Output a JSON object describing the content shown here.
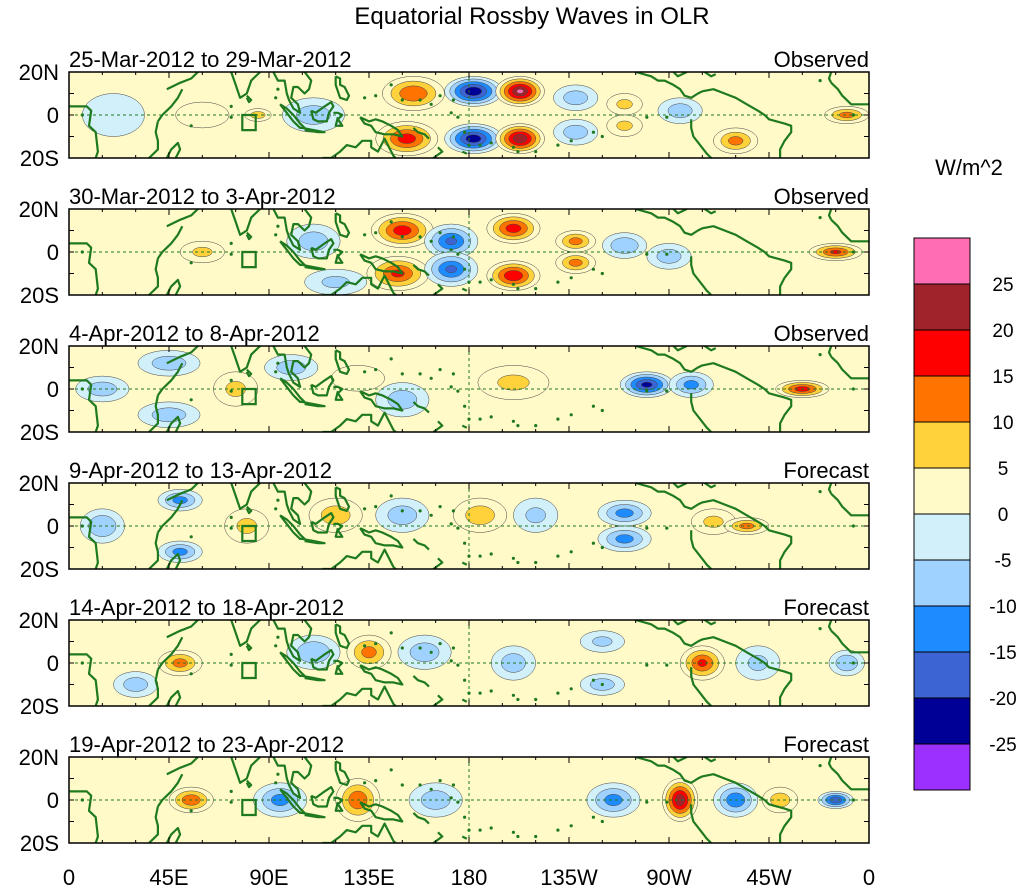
{
  "title": "Equatorial Rossby Waves in OLR",
  "units": "W/m^2",
  "lat_labels": [
    "20N",
    "0",
    "20S"
  ],
  "lon_labels": [
    "0",
    "45E",
    "90E",
    "135E",
    "180",
    "135W",
    "90W",
    "45W",
    "0"
  ],
  "colorbar": {
    "colors": [
      "#ff6eb4",
      "#a0222a",
      "#ff0000",
      "#ff7300",
      "#ffd23c",
      "#fffac8",
      "#d2f0fa",
      "#a0d2ff",
      "#1e8cff",
      "#3c64d2",
      "#000096",
      "#9b30ff"
    ],
    "labels": [
      "25",
      "20",
      "15",
      "10",
      "5",
      "0",
      "-5",
      "-10",
      "-15",
      "-20",
      "-25"
    ]
  },
  "panels": [
    {
      "date_range": "25-Mar-2012 to 29-Mar-2012",
      "status": "Observed",
      "centers": [
        {
          "lon": 155,
          "lat": 10,
          "v": 15,
          "w": 14,
          "h": 8
        },
        {
          "lon": 152,
          "lat": -11,
          "v": 18,
          "w": 14,
          "h": 8
        },
        {
          "lon": 182,
          "lat": 11,
          "v": -25,
          "w": 13,
          "h": 7
        },
        {
          "lon": 182,
          "lat": -11,
          "v": -24,
          "w": 13,
          "h": 7
        },
        {
          "lon": 203,
          "lat": 11,
          "v": 26,
          "w": 11,
          "h": 7
        },
        {
          "lon": 203,
          "lat": -11,
          "v": 25,
          "w": 11,
          "h": 7
        },
        {
          "lon": 228,
          "lat": 8,
          "v": -8,
          "w": 10,
          "h": 6
        },
        {
          "lon": 228,
          "lat": -8,
          "v": -8,
          "w": 10,
          "h": 6
        },
        {
          "lon": 250,
          "lat": 5,
          "v": 6,
          "w": 8,
          "h": 5
        },
        {
          "lon": 250,
          "lat": -5,
          "v": 6,
          "w": 8,
          "h": 5
        },
        {
          "lon": 275,
          "lat": 2,
          "v": -8,
          "w": 10,
          "h": 6
        },
        {
          "lon": 300,
          "lat": -12,
          "v": 12,
          "w": 10,
          "h": 6
        },
        {
          "lon": 350,
          "lat": 0,
          "v": 12,
          "w": 10,
          "h": 4
        },
        {
          "lon": 110,
          "lat": 0,
          "v": -8,
          "w": 14,
          "h": 8
        },
        {
          "lon": 60,
          "lat": 0,
          "v": 5,
          "w": 12,
          "h": 6
        },
        {
          "lon": 20,
          "lat": 0,
          "v": -5,
          "w": 14,
          "h": 10
        },
        {
          "lon": 85,
          "lat": 0,
          "v": 8,
          "w": 6,
          "h": 3
        }
      ]
    },
    {
      "date_range": "30-Mar-2012 to 3-Apr-2012",
      "status": "Observed",
      "centers": [
        {
          "lon": 150,
          "lat": 10,
          "v": 18,
          "w": 14,
          "h": 8
        },
        {
          "lon": 148,
          "lat": -10,
          "v": 16,
          "w": 14,
          "h": 8
        },
        {
          "lon": 172,
          "lat": 5,
          "v": -16,
          "w": 12,
          "h": 8
        },
        {
          "lon": 172,
          "lat": -8,
          "v": -16,
          "w": 12,
          "h": 8
        },
        {
          "lon": 200,
          "lat": 11,
          "v": 18,
          "w": 12,
          "h": 7
        },
        {
          "lon": 200,
          "lat": -11,
          "v": 20,
          "w": 12,
          "h": 7
        },
        {
          "lon": 228,
          "lat": 5,
          "v": 12,
          "w": 9,
          "h": 5
        },
        {
          "lon": 228,
          "lat": -5,
          "v": 12,
          "w": 9,
          "h": 5
        },
        {
          "lon": 250,
          "lat": 3,
          "v": -10,
          "w": 10,
          "h": 6
        },
        {
          "lon": 270,
          "lat": -2,
          "v": -8,
          "w": 10,
          "h": 6
        },
        {
          "lon": 345,
          "lat": 0,
          "v": 16,
          "w": 12,
          "h": 4
        },
        {
          "lon": 110,
          "lat": 5,
          "v": -8,
          "w": 12,
          "h": 8
        },
        {
          "lon": 60,
          "lat": 0,
          "v": 6,
          "w": 10,
          "h": 5
        },
        {
          "lon": 120,
          "lat": -14,
          "v": -6,
          "w": 14,
          "h": 6
        }
      ]
    },
    {
      "date_range": "4-Apr-2012 to 8-Apr-2012",
      "status": "Observed",
      "centers": [
        {
          "lon": 45,
          "lat": 12,
          "v": -8,
          "w": 14,
          "h": 6
        },
        {
          "lon": 45,
          "lat": -12,
          "v": -8,
          "w": 14,
          "h": 6
        },
        {
          "lon": 75,
          "lat": 0,
          "v": 6,
          "w": 10,
          "h": 8
        },
        {
          "lon": 100,
          "lat": 10,
          "v": -8,
          "w": 12,
          "h": 6
        },
        {
          "lon": 130,
          "lat": 5,
          "v": 5,
          "w": 12,
          "h": 6
        },
        {
          "lon": 150,
          "lat": -5,
          "v": -8,
          "w": 12,
          "h": 8
        },
        {
          "lon": 200,
          "lat": 3,
          "v": 6,
          "w": 16,
          "h": 8
        },
        {
          "lon": 260,
          "lat": 2,
          "v": -22,
          "w": 12,
          "h": 6
        },
        {
          "lon": 280,
          "lat": 2,
          "v": -12,
          "w": 10,
          "h": 6
        },
        {
          "lon": 330,
          "lat": 0,
          "v": 18,
          "w": 12,
          "h": 4
        },
        {
          "lon": 15,
          "lat": 0,
          "v": -8,
          "w": 12,
          "h": 6
        }
      ]
    },
    {
      "date_range": "9-Apr-2012 to 13-Apr-2012",
      "status": "Forecast",
      "centers": [
        {
          "lon": 50,
          "lat": 12,
          "v": -12,
          "w": 10,
          "h": 5
        },
        {
          "lon": 50,
          "lat": -12,
          "v": -12,
          "w": 10,
          "h": 5
        },
        {
          "lon": 80,
          "lat": 0,
          "v": 6,
          "w": 10,
          "h": 8
        },
        {
          "lon": 120,
          "lat": 5,
          "v": 8,
          "w": 12,
          "h": 8
        },
        {
          "lon": 150,
          "lat": 5,
          "v": -8,
          "w": 12,
          "h": 8
        },
        {
          "lon": 185,
          "lat": 5,
          "v": 8,
          "w": 12,
          "h": 8
        },
        {
          "lon": 210,
          "lat": 5,
          "v": -6,
          "w": 10,
          "h": 8
        },
        {
          "lon": 250,
          "lat": 6,
          "v": -12,
          "w": 12,
          "h": 6
        },
        {
          "lon": 250,
          "lat": -6,
          "v": -12,
          "w": 12,
          "h": 6
        },
        {
          "lon": 290,
          "lat": 2,
          "v": 6,
          "w": 10,
          "h": 6
        },
        {
          "lon": 305,
          "lat": 0,
          "v": 12,
          "w": 10,
          "h": 4
        },
        {
          "lon": 15,
          "lat": 0,
          "v": -10,
          "w": 10,
          "h": 8
        }
      ]
    },
    {
      "date_range": "14-Apr-2012 to 18-Apr-2012",
      "status": "Forecast",
      "centers": [
        {
          "lon": 50,
          "lat": 0,
          "v": 12,
          "w": 10,
          "h": 6
        },
        {
          "lon": 30,
          "lat": -10,
          "v": -8,
          "w": 10,
          "h": 6
        },
        {
          "lon": 110,
          "lat": 5,
          "v": -10,
          "w": 12,
          "h": 8
        },
        {
          "lon": 135,
          "lat": 5,
          "v": 12,
          "w": 10,
          "h": 8
        },
        {
          "lon": 160,
          "lat": 5,
          "v": -8,
          "w": 12,
          "h": 8
        },
        {
          "lon": 200,
          "lat": 0,
          "v": -8,
          "w": 10,
          "h": 8
        },
        {
          "lon": 240,
          "lat": 10,
          "v": -6,
          "w": 10,
          "h": 5
        },
        {
          "lon": 240,
          "lat": -10,
          "v": -8,
          "w": 10,
          "h": 5
        },
        {
          "lon": 285,
          "lat": 0,
          "v": 16,
          "w": 10,
          "h": 8
        },
        {
          "lon": 310,
          "lat": 0,
          "v": -6,
          "w": 10,
          "h": 8
        },
        {
          "lon": 350,
          "lat": 0,
          "v": -10,
          "w": 8,
          "h": 6
        }
      ]
    },
    {
      "date_range": "19-Apr-2012 to 23-Apr-2012",
      "status": "Forecast",
      "centers": [
        {
          "lon": 55,
          "lat": 0,
          "v": 14,
          "w": 10,
          "h": 6
        },
        {
          "lon": 95,
          "lat": 0,
          "v": -12,
          "w": 12,
          "h": 8
        },
        {
          "lon": 130,
          "lat": 0,
          "v": 14,
          "w": 10,
          "h": 10
        },
        {
          "lon": 165,
          "lat": 0,
          "v": -8,
          "w": 12,
          "h": 8
        },
        {
          "lon": 245,
          "lat": 0,
          "v": -12,
          "w": 12,
          "h": 8
        },
        {
          "lon": 275,
          "lat": 0,
          "v": 24,
          "w": 8,
          "h": 10
        },
        {
          "lon": 300,
          "lat": 0,
          "v": -14,
          "w": 10,
          "h": 8
        },
        {
          "lon": 320,
          "lat": 0,
          "v": 8,
          "w": 8,
          "h": 6
        },
        {
          "lon": 345,
          "lat": 0,
          "v": -20,
          "w": 8,
          "h": 4
        }
      ]
    }
  ]
}
